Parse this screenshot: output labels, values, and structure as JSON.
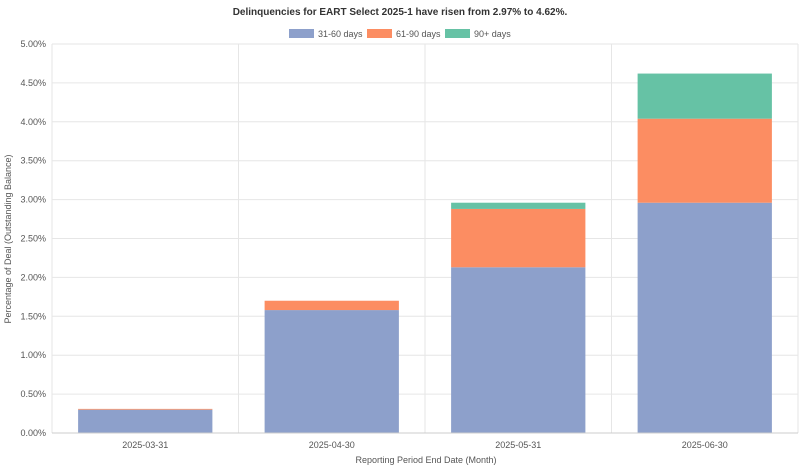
{
  "chart_data": {
    "type": "bar",
    "stacked": true,
    "title": "Delinquencies for EART Select 2025-1 have risen from 2.97% to 4.62%.",
    "xlabel": "Reporting Period End Date (Month)",
    "ylabel": "Percentage of Deal (Outstanding Balance)",
    "categories": [
      "2025-03-31",
      "2025-04-30",
      "2025-05-31",
      "2025-06-30"
    ],
    "series": [
      {
        "name": "31-60 days",
        "color": "#8da0cb",
        "values": [
          0.3,
          1.58,
          2.13,
          2.96
        ]
      },
      {
        "name": "61-90 days",
        "color": "#fc8d62",
        "values": [
          0.01,
          0.12,
          0.75,
          1.08
        ]
      },
      {
        "name": "90+ days",
        "color": "#66c2a5",
        "values": [
          0.0,
          0.0,
          0.08,
          0.58
        ]
      }
    ],
    "ylim": [
      0,
      5
    ],
    "yticks": [
      "0.00%",
      "0.50%",
      "1.00%",
      "1.50%",
      "2.00%",
      "2.50%",
      "3.00%",
      "3.50%",
      "4.00%",
      "4.50%",
      "5.00%"
    ],
    "grid": true,
    "legend": "top-center"
  }
}
